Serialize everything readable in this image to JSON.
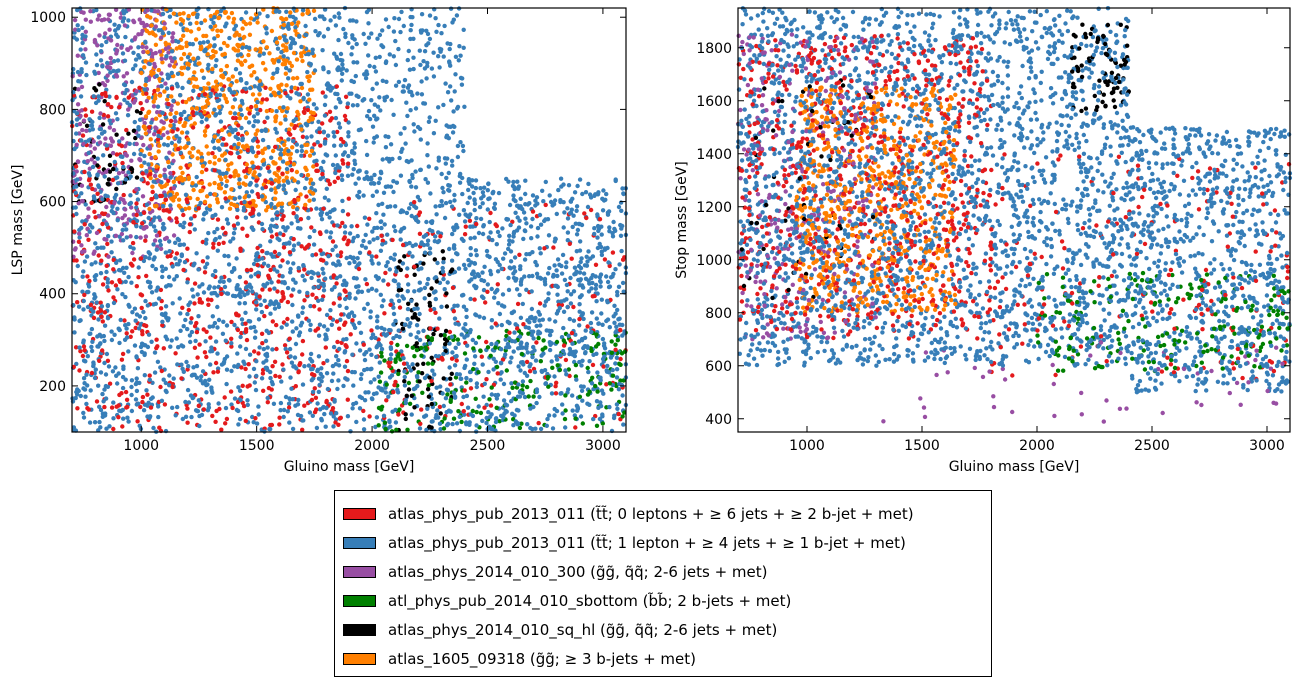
{
  "colors": {
    "red": "#e41a1c",
    "blue": "#377eb8",
    "purple": "#984ea3",
    "green": "#008000",
    "black": "#000000",
    "orange": "#ff7f00"
  },
  "legend": [
    {
      "color": "#e41a1c",
      "label": "atlas_phys_pub_2013_011 (t̃t̃; 0 leptons + ≥ 6 jets + ≥ 2 b-jet + met)"
    },
    {
      "color": "#377eb8",
      "label": "atlas_phys_pub_2013_011 (t̃t̃; 1 lepton  + ≥ 4 jets + ≥ 1 b-jet + met)"
    },
    {
      "color": "#984ea3",
      "label": "atlas_phys_2014_010_300 (g̃g̃, q̃q̃; 2-6 jets + met)"
    },
    {
      "color": "#008000",
      "label": "atl_phys_pub_2014_010_sbottom (b̃b̃; 2 b-jets + met)"
    },
    {
      "color": "#000000",
      "label": "atlas_phys_2014_010_sq_hl (g̃g̃, q̃q̃; 2-6 jets + met)"
    },
    {
      "color": "#ff7f00",
      "label": "atlas_1605_09318 (g̃g̃; ≥ 3 b-jets + met)"
    }
  ],
  "chart_data": [
    {
      "type": "scatter",
      "xlabel": "Gluino mass [GeV]",
      "ylabel": "LSP mass [GeV]",
      "xlim": [
        700,
        3100
      ],
      "ylim": [
        100,
        1020
      ],
      "xticks": [
        1000,
        1500,
        2000,
        2500,
        3000
      ],
      "yticks": [
        200,
        400,
        600,
        800,
        1000
      ],
      "grid": false,
      "note": "Dense scatter of several thousand points; clusters summarized per series as approximate regions (data units).",
      "series": [
        {
          "name": "atlas_phys_pub_2013_011 (t̃t̃; 0 leptons + ≥ 6 jets + ≥ 2 b-jet + met)",
          "color": "#e41a1c",
          "count": 900,
          "regions": [
            {
              "x": [
                700,
                1900
              ],
              "y": [
                100,
                850
              ],
              "weight": 0.8
            },
            {
              "x": [
                1900,
                3100
              ],
              "y": [
                100,
                600
              ],
              "weight": 0.2
            }
          ]
        },
        {
          "name": "atlas_phys_pub_2013_011 (t̃t̃; 1 lepton  + ≥ 4 jets + ≥ 1 b-jet + met)",
          "color": "#377eb8",
          "count": 3400,
          "regions": [
            {
              "x": [
                700,
                2400
              ],
              "y": [
                100,
                1020
              ],
              "weight": 0.75
            },
            {
              "x": [
                2400,
                3100
              ],
              "y": [
                100,
                650
              ],
              "weight": 0.25
            }
          ]
        },
        {
          "name": "atlas_phys_2014_010_300 (g̃g̃, q̃q̃; 2-6 jets + met)",
          "color": "#984ea3",
          "count": 330,
          "regions": [
            {
              "x": [
                700,
                1150
              ],
              "y": [
                480,
                1020
              ],
              "weight": 1.0
            }
          ]
        },
        {
          "name": "atl_phys_pub_2014_010_sbottom (b̃b̃; 2 b-jets + met)",
          "color": "#008000",
          "count": 200,
          "regions": [
            {
              "x": [
                2000,
                3100
              ],
              "y": [
                100,
                320
              ],
              "weight": 1.0
            }
          ]
        },
        {
          "name": "atlas_phys_2014_010_sq_hl (g̃g̃, q̃q̃; 2-6 jets + met)",
          "color": "#000000",
          "count": 130,
          "regions": [
            {
              "x": [
                700,
                1000
              ],
              "y": [
                600,
                880
              ],
              "weight": 0.35
            },
            {
              "x": [
                2100,
                2350
              ],
              "y": [
                100,
                500
              ],
              "weight": 0.65
            }
          ]
        },
        {
          "name": "atlas_1605_09318 (g̃g̃; ≥ 3 b-jets + met)",
          "color": "#ff7f00",
          "count": 650,
          "regions": [
            {
              "x": [
                1000,
                1750
              ],
              "y": [
                580,
                1020
              ],
              "weight": 1.0
            }
          ]
        }
      ]
    },
    {
      "type": "scatter",
      "xlabel": "Gluino mass [GeV]",
      "ylabel": "Stop mass [GeV]",
      "xlim": [
        700,
        3100
      ],
      "ylim": [
        350,
        1950
      ],
      "xticks": [
        1000,
        1500,
        2000,
        2500,
        3000
      ],
      "yticks": [
        400,
        600,
        800,
        1000,
        1200,
        1400,
        1600,
        1800
      ],
      "grid": false,
      "note": "Dense scatter of several thousand points; clusters summarized per series as approximate regions (data units).",
      "series": [
        {
          "name": "atlas_phys_pub_2013_011 (t̃t̃; 0 leptons + ≥ 6 jets + ≥ 2 b-jet + met)",
          "color": "#e41a1c",
          "count": 900,
          "regions": [
            {
              "x": [
                700,
                1800
              ],
              "y": [
                700,
                1850
              ],
              "weight": 0.8
            },
            {
              "x": [
                1800,
                3100
              ],
              "y": [
                550,
                1400
              ],
              "weight": 0.2
            }
          ]
        },
        {
          "name": "atlas_phys_pub_2013_011 (t̃t̃; 1 lepton  + ≥ 4 jets + ≥ 1 b-jet + met)",
          "color": "#377eb8",
          "count": 3400,
          "regions": [
            {
              "x": [
                700,
                2400
              ],
              "y": [
                600,
                1950
              ],
              "weight": 0.75
            },
            {
              "x": [
                2400,
                3100
              ],
              "y": [
                500,
                1500
              ],
              "weight": 0.25
            }
          ]
        },
        {
          "name": "atlas_phys_2014_010_300 (g̃g̃, q̃q̃; 2-6 jets + met)",
          "color": "#984ea3",
          "count": 330,
          "regions": [
            {
              "x": [
                700,
                1300
              ],
              "y": [
                700,
                1850
              ],
              "weight": 0.85
            },
            {
              "x": [
                1300,
                3100
              ],
              "y": [
                380,
                700
              ],
              "weight": 0.15
            }
          ]
        },
        {
          "name": "atl_phys_pub_2014_010_sbottom (b̃b̃; 2 b-jets + met)",
          "color": "#008000",
          "count": 200,
          "regions": [
            {
              "x": [
                2000,
                3100
              ],
              "y": [
                580,
                950
              ],
              "weight": 1.0
            }
          ]
        },
        {
          "name": "atlas_phys_2014_010_sq_hl (g̃g̃, q̃q̃; 2-6 jets + met)",
          "color": "#000000",
          "count": 130,
          "regions": [
            {
              "x": [
                2150,
                2400
              ],
              "y": [
                1550,
                1900
              ],
              "weight": 0.6
            },
            {
              "x": [
                700,
                1300
              ],
              "y": [
                800,
                1700
              ],
              "weight": 0.4
            }
          ]
        },
        {
          "name": "atlas_1605_09318 (g̃g̃; ≥ 3 b-jets + met)",
          "color": "#ff7f00",
          "count": 650,
          "regions": [
            {
              "x": [
                950,
                1650
              ],
              "y": [
                800,
                1650
              ],
              "weight": 1.0
            }
          ]
        }
      ]
    }
  ]
}
